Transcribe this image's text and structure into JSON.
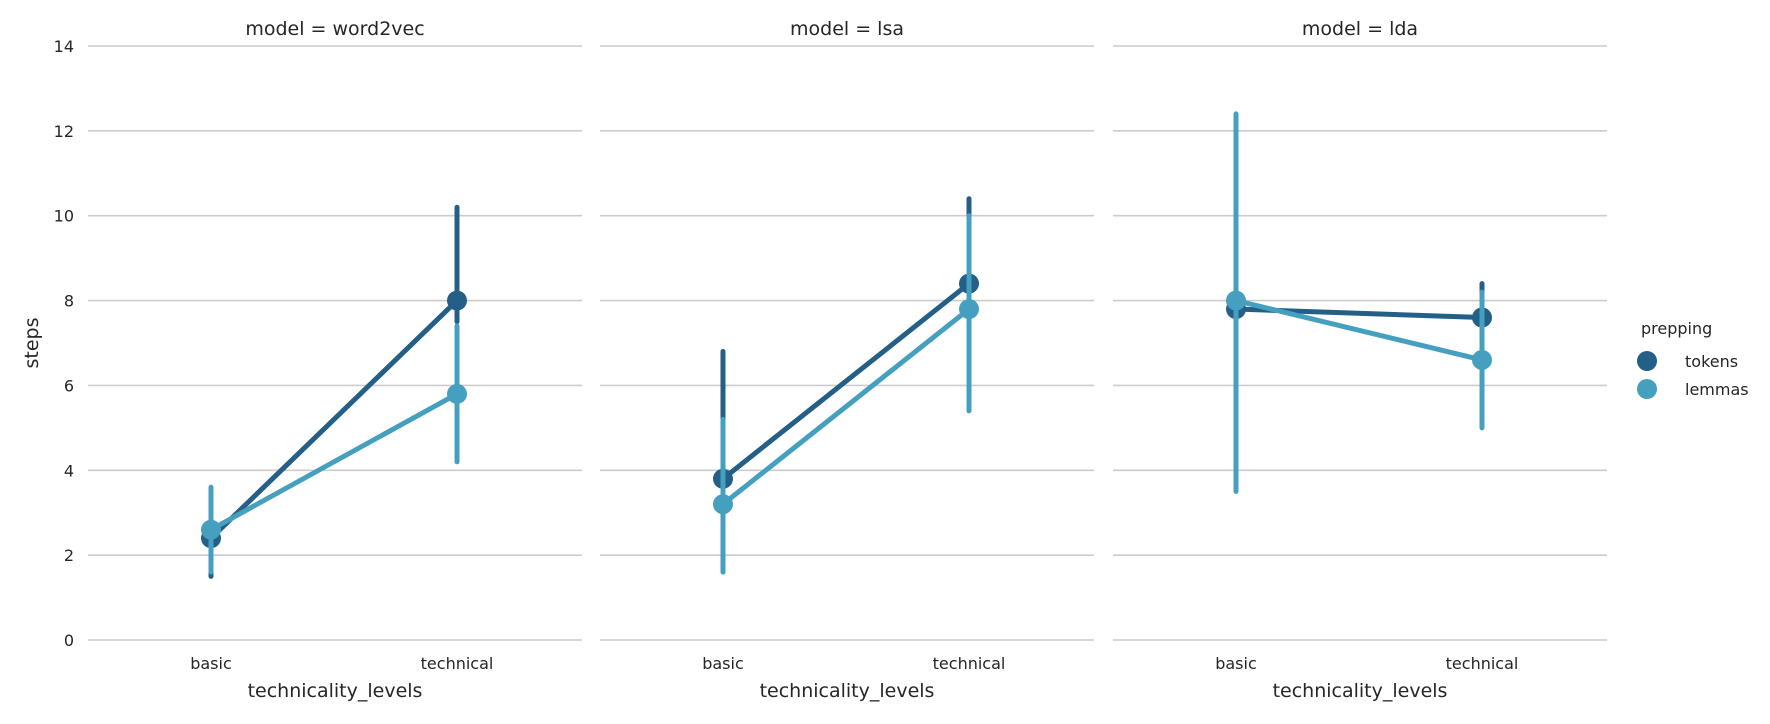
{
  "chart_data": {
    "type": "line",
    "ylabel": "steps",
    "xlabel": "technicality_levels",
    "categories": [
      "basic",
      "technical"
    ],
    "ylim": [
      0,
      14
    ],
    "yticks": [
      0,
      2,
      4,
      6,
      8,
      10,
      12,
      14
    ],
    "grid": "horizontal",
    "legend": {
      "title": "prepping",
      "placement": "right",
      "entries": [
        "tokens",
        "lemmas"
      ]
    },
    "colors": {
      "tokens": "#245f87",
      "lemmas": "#45a0c0"
    },
    "facets": [
      {
        "title": "model = word2vec",
        "series": [
          {
            "name": "tokens",
            "values": [
              2.4,
              8.0
            ],
            "ci": [
              [
                1.5,
                3.5
              ],
              [
                7.5,
                10.2
              ]
            ]
          },
          {
            "name": "lemmas",
            "values": [
              2.6,
              5.8
            ],
            "ci": [
              [
                1.6,
                3.6
              ],
              [
                4.2,
                7.4
              ]
            ]
          }
        ]
      },
      {
        "title": "model = lsa",
        "series": [
          {
            "name": "tokens",
            "values": [
              3.8,
              8.4
            ],
            "ci": [
              [
                2.0,
                6.8
              ],
              [
                6.5,
                10.4
              ]
            ]
          },
          {
            "name": "lemmas",
            "values": [
              3.2,
              7.8
            ],
            "ci": [
              [
                1.6,
                5.2
              ],
              [
                5.4,
                10.0
              ]
            ]
          }
        ]
      },
      {
        "title": "model = lda",
        "series": [
          {
            "name": "tokens",
            "values": [
              7.8,
              7.6
            ],
            "ci": [
              [
                4.0,
                11.8
              ],
              [
                6.8,
                8.4
              ]
            ]
          },
          {
            "name": "lemmas",
            "values": [
              8.0,
              6.6
            ],
            "ci": [
              [
                3.5,
                12.4
              ],
              [
                5.0,
                8.2
              ]
            ]
          }
        ]
      }
    ]
  }
}
